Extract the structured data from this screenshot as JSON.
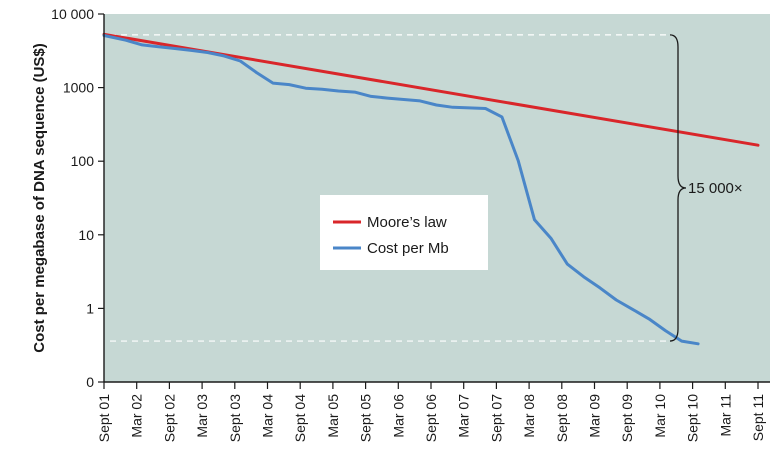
{
  "chart_data": {
    "type": "line",
    "title": "",
    "xlabel": "",
    "ylabel": "Cost per megabase of DNA sequence (US$)",
    "yscale": "log",
    "ylim": [
      0.1,
      10000
    ],
    "y_ticks": [
      {
        "value": 10000,
        "label": "10 000"
      },
      {
        "value": 1000,
        "label": "1000"
      },
      {
        "value": 100,
        "label": "100"
      },
      {
        "value": 10,
        "label": "10"
      },
      {
        "value": 1,
        "label": "1"
      },
      {
        "value": 0.1,
        "label": "0"
      }
    ],
    "x_ticks": [
      "Sept 01",
      "Mar 02",
      "Sept 02",
      "Mar 03",
      "Sept 03",
      "Mar 04",
      "Sept 04",
      "Mar 05",
      "Sept 05",
      "Mar 06",
      "Sept 06",
      "Mar 07",
      "Sept 07",
      "Mar 08",
      "Sept 08",
      "Mar 09",
      "Sept 09",
      "Mar 10",
      "Sept 10",
      "Mar 11",
      "Sept 11"
    ],
    "x_tick_start": "2001-09",
    "x_tick_step_months": 6,
    "xlim": [
      "2001-09",
      "2011-09"
    ],
    "grid": false,
    "background_color": "#c6d8d4",
    "legend_position": "center",
    "series": [
      {
        "name": "Moore’s law",
        "color": "#d9262a",
        "x": [
          "2001-09",
          "2011-09"
        ],
        "y": [
          5300,
          165
        ]
      },
      {
        "name": "Cost per Mb",
        "color": "#4a86c8",
        "x": [
          "2001-09",
          "2002-01",
          "2002-04",
          "2002-07",
          "2002-10",
          "2003-01",
          "2003-04",
          "2003-07",
          "2003-10",
          "2004-01",
          "2004-04",
          "2004-07",
          "2004-10",
          "2005-01",
          "2005-04",
          "2005-07",
          "2005-10",
          "2006-01",
          "2006-04",
          "2006-07",
          "2006-10",
          "2007-01",
          "2007-04",
          "2007-07",
          "2007-10",
          "2008-01",
          "2008-04",
          "2008-07",
          "2008-10",
          "2009-01",
          "2009-04",
          "2009-07",
          "2009-10",
          "2010-01",
          "2010-04",
          "2010-07",
          "2010-10"
        ],
        "y": [
          5100,
          4400,
          3800,
          3600,
          3400,
          3200,
          3000,
          2700,
          2300,
          1600,
          1150,
          1100,
          980,
          950,
          900,
          870,
          760,
          720,
          690,
          660,
          580,
          540,
          530,
          520,
          400,
          102,
          16,
          9,
          4,
          2.7,
          1.9,
          1.3,
          0.97,
          0.72,
          0.5,
          0.36,
          0.33
        ]
      }
    ],
    "reference_lines": [
      {
        "value": 5200,
        "style": "dashed",
        "color": "#ffffff"
      },
      {
        "value": 0.36,
        "style": "dashed",
        "color": "#ffffff"
      }
    ],
    "annotations": [
      {
        "text": "15 000×",
        "type": "brace",
        "from": 5200,
        "to": 0.36,
        "at_x": "2010-10"
      }
    ]
  }
}
